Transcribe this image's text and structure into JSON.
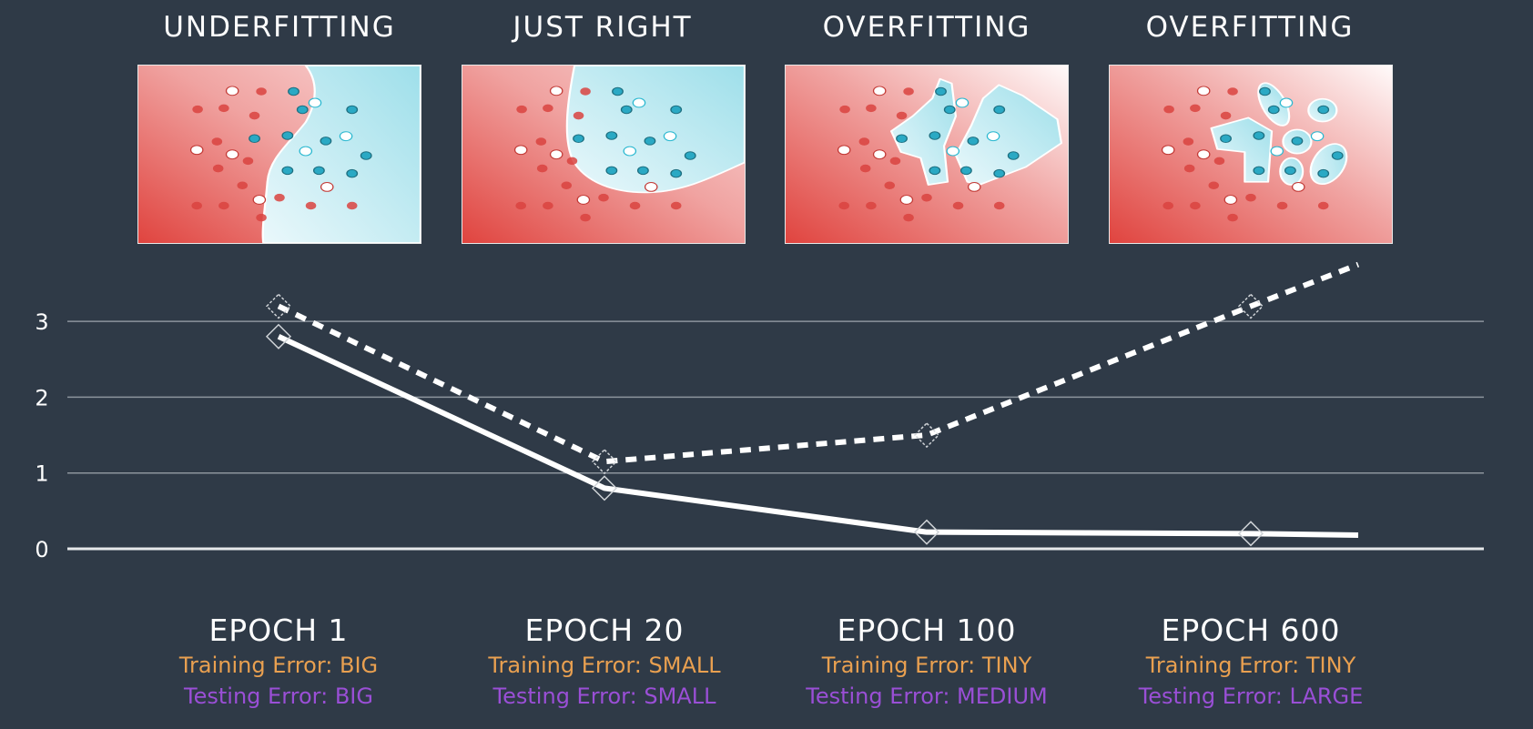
{
  "titles": [
    "UNDERFITTING",
    "JUST RIGHT",
    "OVERFITTING",
    "OVERFITTING"
  ],
  "captions": [
    {
      "epoch": "EPOCH 1",
      "training": "Training Error: BIG",
      "testing": "Testing Error: BIG"
    },
    {
      "epoch": "EPOCH 20",
      "training": "Training Error: SMALL",
      "testing": "Testing Error: SMALL"
    },
    {
      "epoch": "EPOCH 100",
      "training": "Training Error: TINY",
      "testing": "Testing Error: MEDIUM"
    },
    {
      "epoch": "EPOCH 600",
      "training": "Training Error: TINY",
      "testing": "Testing Error: LARGE"
    }
  ],
  "colors": {
    "background": "#2f3a47",
    "training": "#e9a050",
    "testing": "#9a4fd6",
    "red_class": "#d9433f",
    "blue_class": "#2aa9c4"
  },
  "chart_data": {
    "type": "line",
    "categories": [
      "EPOCH 1",
      "EPOCH 20",
      "EPOCH 100",
      "EPOCH 600"
    ],
    "yticks": [
      "0",
      "1",
      "2",
      "3"
    ],
    "ylim": [
      0,
      3.8
    ],
    "grid": true,
    "series": [
      {
        "style": "solid",
        "values": [
          2.8,
          0.8,
          0.22,
          0.2
        ],
        "tail": 0.18
      },
      {
        "style": "dashed",
        "values": [
          3.2,
          1.15,
          1.5,
          3.2
        ],
        "tail": 3.75
      }
    ]
  }
}
